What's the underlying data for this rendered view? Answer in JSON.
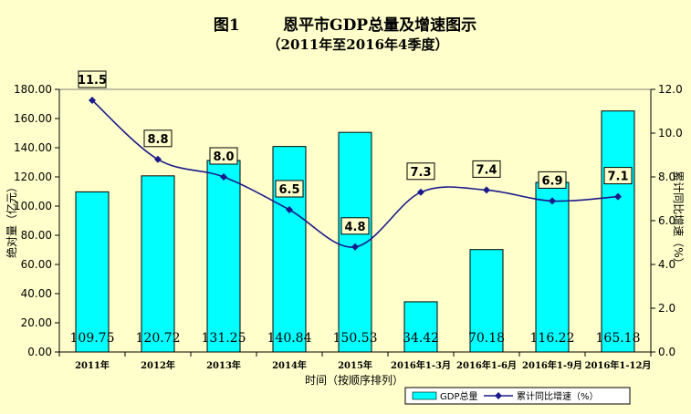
{
  "chart_data": {
    "type": "bar",
    "title": "图1        恩平市GDP总量及增速图示",
    "subtitle": "（2011年至2016年4季度）",
    "xlabel": "时间（按顺序排列）",
    "ylabel": "绝对量（亿元）",
    "y2label": "累计同比增速（%）",
    "categories": [
      "2011年",
      "2012年",
      "2013年",
      "2014年",
      "2015年",
      "2016年1-3月",
      "2016年1-6月",
      "2016年1-9月",
      "2016年1-12月"
    ],
    "series": [
      {
        "name": "GDP总量",
        "type": "bar",
        "color": "#00ffff",
        "values": [
          109.75,
          120.72,
          131.25,
          140.84,
          150.53,
          34.42,
          70.18,
          116.22,
          165.18
        ],
        "labels": [
          "109.75",
          "120.72",
          "131.25",
          "140.84",
          "150.53",
          "34.42",
          "70.18",
          "116.22",
          "165.18"
        ]
      },
      {
        "name": "累计同比增速（%）",
        "type": "line",
        "color": "#1a1a8c",
        "values": [
          11.5,
          8.8,
          8.0,
          6.5,
          4.8,
          7.3,
          7.4,
          6.9,
          7.1
        ],
        "labels": [
          "11.5",
          "8.8",
          "8.0",
          "6.5",
          "4.8",
          "7.3",
          "7.4",
          "6.9",
          "7.1"
        ]
      }
    ],
    "ylim": [
      0,
      180
    ],
    "y_ticks": [
      "0.00",
      "20.00",
      "40.00",
      "60.00",
      "80.00",
      "100.00",
      "120.00",
      "140.00",
      "160.00",
      "180.00"
    ],
    "y2lim": [
      0,
      12
    ],
    "y2_ticks": [
      "0.0",
      "2.0",
      "4.0",
      "6.0",
      "8.0",
      "10.0",
      "12.0"
    ],
    "grid": false,
    "legend_position": "bottom-right"
  }
}
